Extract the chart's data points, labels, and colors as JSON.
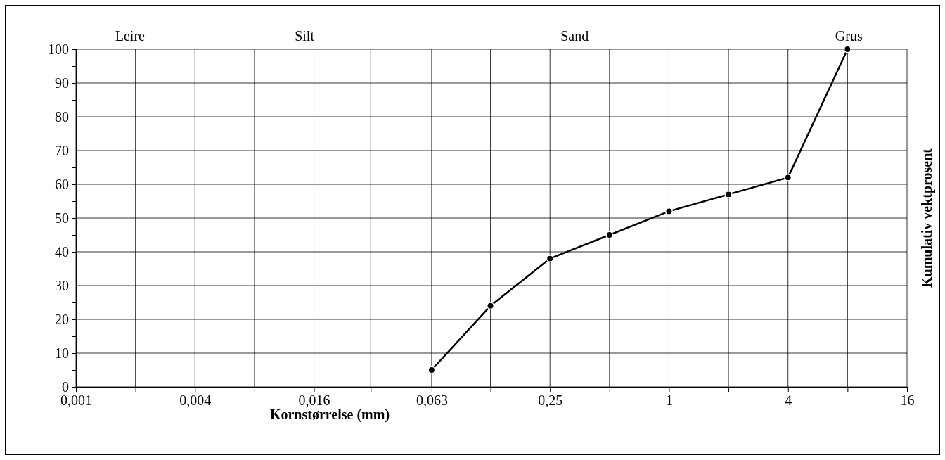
{
  "chart_data": {
    "type": "line",
    "xlabel": "Kornstørrelse (mm)",
    "ylabel": "Kumulativ vektprosent",
    "log": "x",
    "x": [
      0.063,
      0.125,
      0.25,
      0.5,
      1,
      2,
      4,
      8
    ],
    "series": [
      {
        "color": "#000000",
        "values": [
          5,
          24,
          38,
          45,
          52,
          57,
          62,
          100
        ]
      }
    ],
    "xlim": [
      0.001,
      16
    ],
    "xticks": [
      {
        "value": 0.001,
        "label": "0,001"
      },
      {
        "value": 0.002,
        "label": null
      },
      {
        "value": 0.004,
        "label": "0,004"
      },
      {
        "value": 0.008,
        "label": null
      },
      {
        "value": 0.016,
        "label": "0,016"
      },
      {
        "value": 0.031,
        "label": null
      },
      {
        "value": 0.063,
        "label": "0,063"
      },
      {
        "value": 0.125,
        "label": null
      },
      {
        "value": 0.25,
        "label": "0,25"
      },
      {
        "value": 0.5,
        "label": null
      },
      1,
      {
        "value": 2,
        "label": null
      },
      4,
      {
        "value": 8,
        "label": null
      },
      16
    ],
    "ylim": [
      0,
      100
    ],
    "yticks": [
      0,
      {
        "value": 5,
        "label": null
      },
      10,
      {
        "value": 15,
        "label": null
      },
      20,
      {
        "value": 25,
        "label": null
      },
      30,
      {
        "value": 35,
        "label": null
      },
      40,
      {
        "value": 45,
        "label": null
      },
      50,
      {
        "value": 55,
        "label": null
      },
      60,
      {
        "value": 65,
        "label": null
      },
      70,
      {
        "value": 75,
        "label": null
      },
      80,
      {
        "value": 85,
        "label": null
      },
      90,
      {
        "value": 95,
        "label": null
      },
      100
    ],
    "grid": true,
    "marker": "circle",
    "line_style": "solid",
    "annotations": [
      "Leire",
      "Silt",
      "Sand",
      "Grus"
    ]
  }
}
